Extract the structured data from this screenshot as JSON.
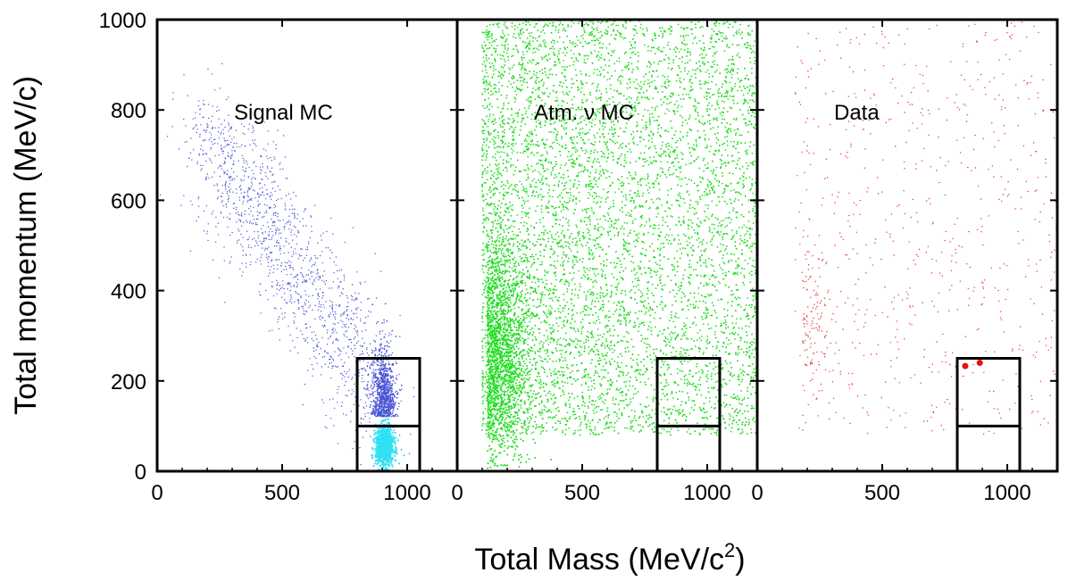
{
  "chart_data": {
    "type": "scatter",
    "xlabel": "Total Mass (MeV/c",
    "xlabel_sup": "2",
    "xlabel_close": ")",
    "ylabel": "Total momentum (MeV/c)",
    "xlim": [
      0,
      1200
    ],
    "ylim": [
      0,
      1000
    ],
    "x_ticks": [
      "0",
      "500",
      "1000"
    ],
    "x_tick_values": [
      0,
      500,
      1000
    ],
    "y_ticks": [
      "0",
      "200",
      "400",
      "600",
      "800",
      "1000"
    ],
    "y_tick_values": [
      0,
      200,
      400,
      600,
      800,
      1000
    ],
    "signal_box": {
      "mass_range": [
        800,
        1050
      ],
      "momentum_range": [
        0,
        250
      ],
      "momentum_split": 100
    },
    "panels": [
      {
        "label": "Signal MC",
        "colors": [
          "#4b55d6",
          "#30e0f5"
        ],
        "description_points": [
          {
            "mass": 180,
            "momentum": 750
          },
          {
            "mass": 400,
            "momentum": 600
          },
          {
            "mass": 700,
            "momentum": 380
          },
          {
            "mass": 900,
            "momentum": 150
          },
          {
            "mass": 910,
            "momentum": 50
          }
        ]
      },
      {
        "label": "Atm. ν MC",
        "colors": [
          "#22dd22"
        ],
        "description_points": [
          {
            "mass": 150,
            "momentum": 250
          },
          {
            "mass": 500,
            "momentum": 600
          },
          {
            "mass": 900,
            "momentum": 900
          }
        ]
      },
      {
        "label": "Data",
        "colors": [
          "#e83030"
        ],
        "candidates": [
          {
            "mass": 832,
            "momentum": 233
          },
          {
            "mass": 890,
            "momentum": 240
          }
        ]
      }
    ]
  }
}
